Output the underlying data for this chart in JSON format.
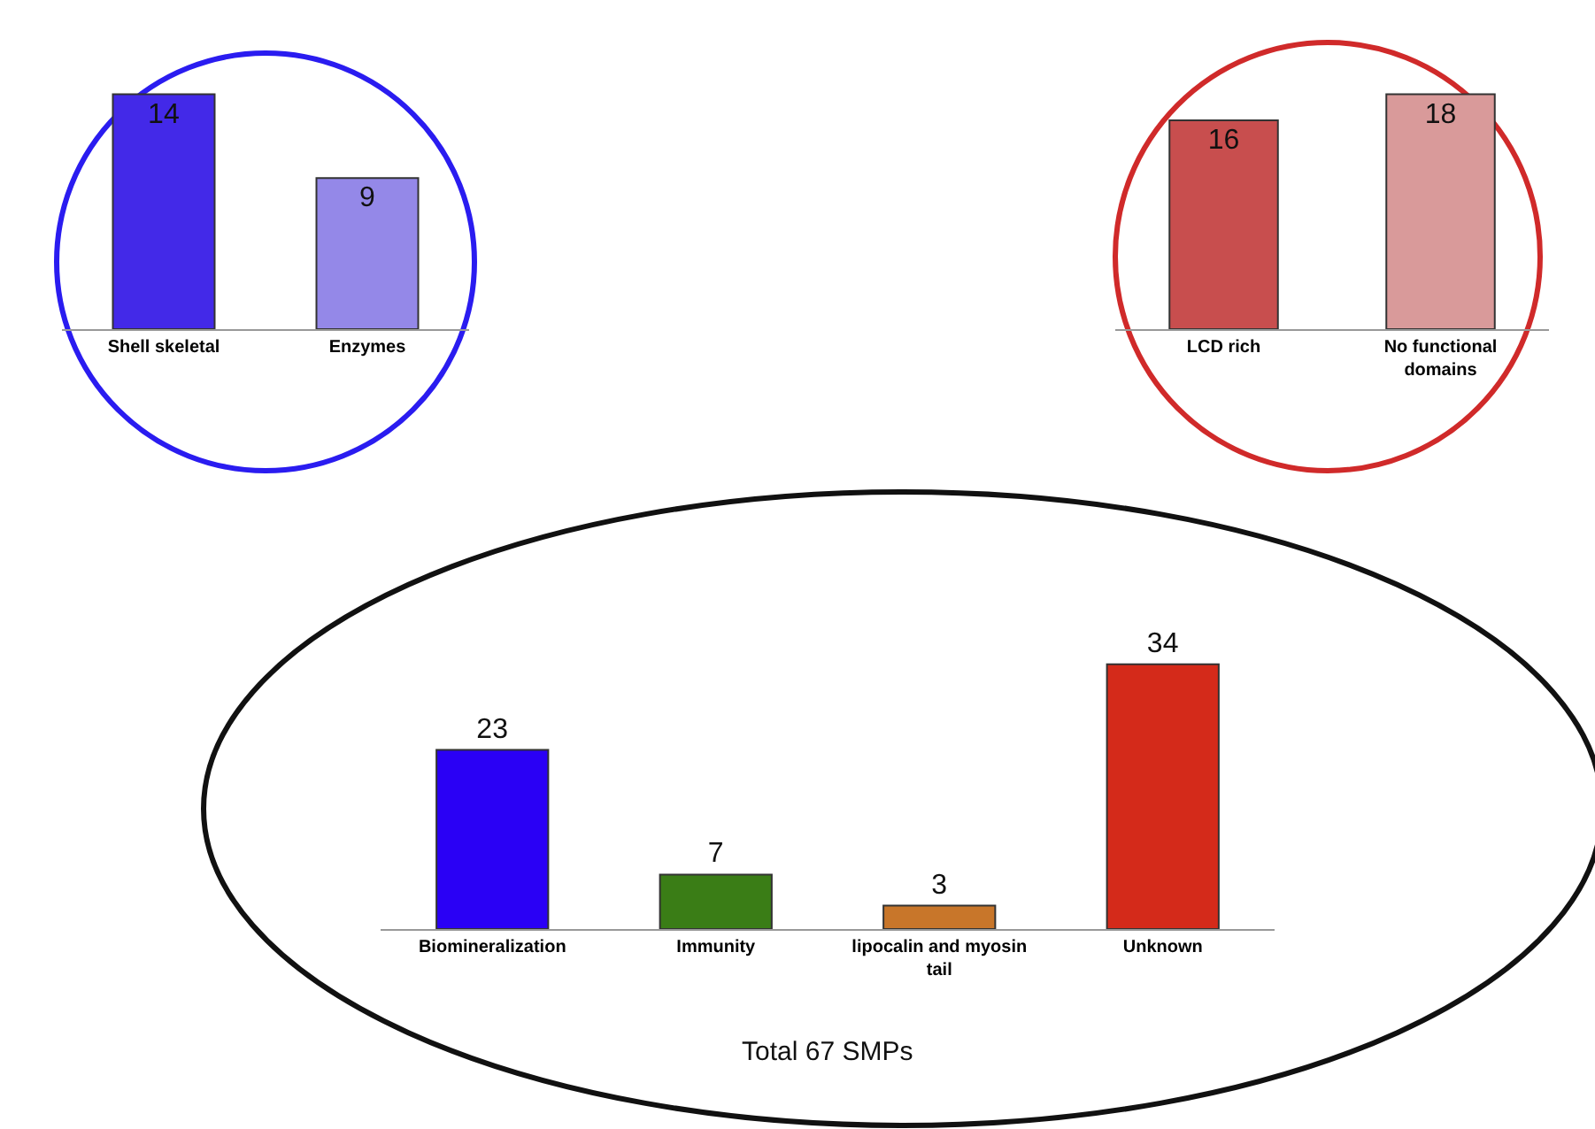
{
  "chart_data": [
    {
      "type": "bar",
      "categories": [
        "Shell skeletal",
        "Enzymes"
      ],
      "values": [
        14,
        9
      ],
      "colors": [
        "#4329e8",
        "#9488e8"
      ],
      "data_labels": true
    },
    {
      "type": "bar",
      "categories": [
        "LCD rich",
        "No functional domains"
      ],
      "values": [
        16,
        18
      ],
      "colors": [
        "#c84e4e",
        "#d99a9a"
      ],
      "data_labels": true
    },
    {
      "type": "bar",
      "categories": [
        "Biomineralization",
        "Immunity",
        "lipocalin and myosin tail",
        "Unknown"
      ],
      "values": [
        23,
        7,
        3,
        34
      ],
      "colors": [
        "#2a00f5",
        "#3a7d16",
        "#c8762a",
        "#d42a1a"
      ],
      "data_labels": true,
      "annotations": [
        "Total 67 SMPs"
      ]
    }
  ]
}
